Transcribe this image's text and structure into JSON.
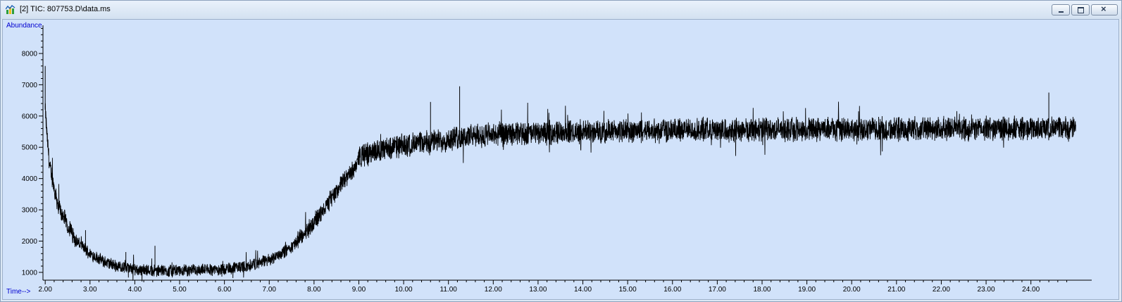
{
  "window": {
    "title": "[2] TIC: 807753.D\\data.ms",
    "icon": "chromatogram-app-icon",
    "buttons": {
      "minimize": "minimize-icon",
      "maximize": "maximize-icon",
      "close": "close-icon"
    }
  },
  "colors": {
    "plot_background": "#d1e2fa",
    "trace": "#000000",
    "axis_title": "#0000d0"
  },
  "chart_data": {
    "type": "line",
    "title": "",
    "xlabel": "Time-->",
    "ylabel": "Abundance",
    "xlim": [
      1.95,
      25.2
    ],
    "ylim": [
      750,
      8900
    ],
    "x_ticks": [
      2.0,
      3.0,
      4.0,
      5.0,
      6.0,
      7.0,
      8.0,
      9.0,
      10.0,
      11.0,
      12.0,
      13.0,
      14.0,
      15.0,
      16.0,
      17.0,
      18.0,
      19.0,
      20.0,
      21.0,
      22.0,
      23.0,
      24.0
    ],
    "x_tick_labels": [
      "2.00",
      "3.00",
      "4.00",
      "5.00",
      "6.00",
      "7.00",
      "8.00",
      "9.00",
      "10.00",
      "11.00",
      "12.00",
      "13.00",
      "14.00",
      "15.00",
      "16.00",
      "17.00",
      "18.00",
      "19.00",
      "20.00",
      "21.00",
      "22.00",
      "23.00",
      "24.00"
    ],
    "y_ticks": [
      1000,
      2000,
      3000,
      4000,
      5000,
      6000,
      7000,
      8000
    ],
    "y_tick_labels": [
      "1000",
      "2000",
      "3000",
      "4000",
      "5000",
      "6000",
      "7000",
      "8000"
    ],
    "grid": false,
    "legend": "none",
    "series": [
      {
        "values_note_free": true,
        "x": [
          2.0,
          2.05,
          2.1,
          2.2,
          2.3,
          2.5,
          2.7,
          3.0,
          3.3,
          3.6,
          4.0,
          4.5,
          5.0,
          5.5,
          6.0,
          6.5,
          7.0,
          7.5,
          8.0,
          8.3,
          8.6,
          8.9,
          9.0,
          9.3,
          9.6,
          10.0,
          10.5,
          11.0,
          11.5,
          12.0,
          13.0,
          14.0,
          15.0,
          16.0,
          17.0,
          18.0,
          19.0,
          20.0,
          21.0,
          22.0,
          23.0,
          24.0,
          25.0
        ],
        "y": [
          6200,
          5200,
          4400,
          3700,
          3100,
          2500,
          2000,
          1600,
          1350,
          1200,
          1100,
          1050,
          1050,
          1080,
          1100,
          1200,
          1400,
          1800,
          2600,
          3200,
          3800,
          4300,
          4700,
          4850,
          4950,
          5050,
          5150,
          5250,
          5350,
          5400,
          5450,
          5500,
          5520,
          5540,
          5560,
          5560,
          5570,
          5580,
          5580,
          5590,
          5600,
          5600,
          5600
        ]
      }
    ],
    "annotations": [
      {
        "x": 2.0,
        "y": 7600
      },
      {
        "x": 2.9,
        "y": 2350
      },
      {
        "x": 3.8,
        "y": 1650
      },
      {
        "x": 4.45,
        "y": 1850
      },
      {
        "x": 10.6,
        "y": 6450
      },
      {
        "x": 11.25,
        "y": 6950
      },
      {
        "x": 24.4,
        "y": 6750
      }
    ]
  }
}
